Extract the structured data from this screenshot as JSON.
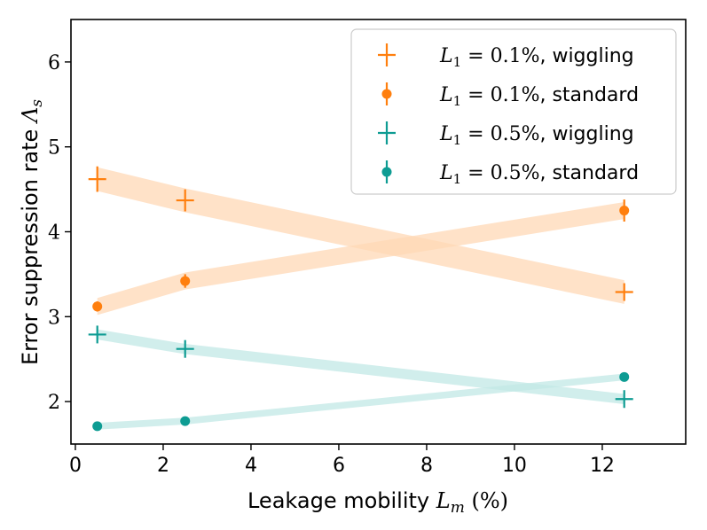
{
  "chart_data": {
    "type": "scatter",
    "xlabel_text": "Leakage mobility",
    "xlabel_symbol": "L",
    "xlabel_sub": "m",
    "xlabel_unit": "(%)",
    "ylabel_text": "Error suppression rate",
    "ylabel_symbol": "Λ",
    "ylabel_sub": "s",
    "xlim": [
      -0.1,
      13.9
    ],
    "ylim": [
      1.5,
      6.5
    ],
    "xticks": [
      0,
      2,
      4,
      6,
      8,
      10,
      12
    ],
    "yticks": [
      2,
      3,
      4,
      5,
      6
    ],
    "legend_position": "top-right",
    "series": [
      {
        "name": "L1 = 0.1%, wiggling",
        "legend_prefix": "L",
        "legend_sub": "1",
        "legend_eq": " = 0.1%",
        "legend_suffix": ", wiggling",
        "color": "#ff7f0e",
        "band_color": "#ffd8b6",
        "marker": "plus",
        "x": [
          0.5,
          2.5,
          12.5
        ],
        "y": [
          4.62,
          4.37,
          3.29
        ],
        "yerr": [
          0.15,
          0.13,
          0.08
        ],
        "band_halfwidth": 0.14
      },
      {
        "name": "L1 = 0.1%, standard",
        "legend_prefix": "L",
        "legend_sub": "1",
        "legend_eq": " = 0.1%",
        "legend_suffix": ", standard",
        "color": "#ff7f0e",
        "band_color": "#ffd8b6",
        "marker": "circle",
        "x": [
          0.5,
          2.5,
          12.5
        ],
        "y": [
          3.12,
          3.42,
          4.25
        ],
        "yerr": [
          0.06,
          0.08,
          0.13
        ],
        "band_halfwidth": 0.1
      },
      {
        "name": "L1 = 0.5%, wiggling",
        "legend_prefix": "L",
        "legend_sub": "1",
        "legend_eq": " = 0.5%",
        "legend_suffix": ", wiggling",
        "color": "#0e9c93",
        "band_color": "#c2e8e5",
        "marker": "plus",
        "x": [
          0.5,
          2.5,
          12.5
        ],
        "y": [
          2.79,
          2.62,
          2.03
        ],
        "yerr": [
          0.06,
          0.05,
          0.04
        ],
        "band_halfwidth": 0.06
      },
      {
        "name": "L1 = 0.5%, standard",
        "legend_prefix": "L",
        "legend_sub": "1",
        "legend_eq": " = 0.5%",
        "legend_suffix": ", standard",
        "color": "#0e9c93",
        "band_color": "#c2e8e5",
        "marker": "circle",
        "x": [
          0.5,
          2.5,
          12.5
        ],
        "y": [
          1.71,
          1.77,
          2.29
        ],
        "yerr": [
          0.02,
          0.02,
          0.03
        ],
        "band_halfwidth": 0.04
      }
    ]
  }
}
